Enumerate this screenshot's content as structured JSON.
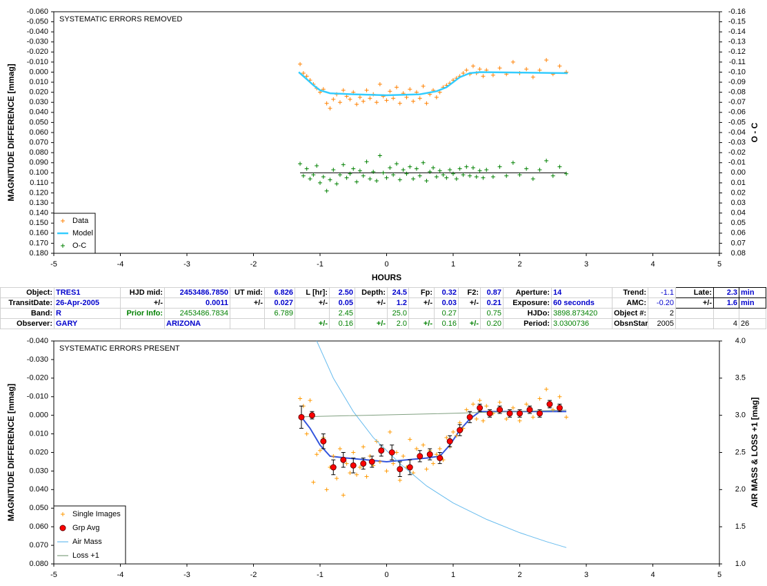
{
  "chart_data": [
    {
      "type": "scatter",
      "annotation": "SYSTEMATIC ERRORS REMOVED",
      "xlabel": "HOURS",
      "ylabel": "MAGNITUDE DIFFERENCE [mmag]",
      "y2label": "O - C",
      "xlim": [
        -5,
        5
      ],
      "xticks": [
        -5,
        -4,
        -3,
        -2,
        -1,
        0,
        1,
        2,
        3,
        4,
        5
      ],
      "ylim": [
        -0.06,
        0.18
      ],
      "inverted_y": true,
      "yticks": [
        {
          "value": -0.06,
          "label": "-0.060"
        },
        {
          "value": -0.05,
          "label": "-0.050"
        },
        {
          "value": -0.04,
          "label": "-0.040"
        },
        {
          "value": -0.03,
          "label": "-0.030"
        },
        {
          "value": -0.02,
          "label": "-0.020"
        },
        {
          "value": -0.01,
          "label": "-0.010"
        },
        {
          "value": 0,
          "label": "0.000"
        },
        {
          "value": 0.01,
          "label": "0.010"
        },
        {
          "value": 0.02,
          "label": "0.020"
        },
        {
          "value": 0.03,
          "label": "0.030"
        },
        {
          "value": 0.04,
          "label": "0.040"
        },
        {
          "value": 0.05,
          "label": "0.050"
        },
        {
          "value": 0.06,
          "label": "0.060"
        },
        {
          "value": 0.07,
          "label": "0.070"
        },
        {
          "value": 0.08,
          "label": "0.080"
        },
        {
          "value": 0.09,
          "label": "0.090"
        },
        {
          "value": 0.1,
          "label": "0.100"
        },
        {
          "value": 0.11,
          "label": "0.110"
        },
        {
          "value": 0.12,
          "label": "0.120"
        },
        {
          "value": 0.13,
          "label": "0.130"
        },
        {
          "value": 0.14,
          "label": "0.140"
        },
        {
          "value": 0.15,
          "label": "0.150"
        },
        {
          "value": 0.16,
          "label": "0.160"
        },
        {
          "value": 0.17,
          "label": "0.170"
        },
        {
          "value": 0.18,
          "label": "0.180"
        }
      ],
      "y2lim": [
        -0.16,
        0.08
      ],
      "inverted_y2": true,
      "y2ticks": [
        {
          "value": -0.16,
          "label": "-0.16"
        },
        {
          "value": -0.15,
          "label": "-0.15"
        },
        {
          "value": -0.14,
          "label": "-0.14"
        },
        {
          "value": -0.13,
          "label": "-0.13"
        },
        {
          "value": -0.12,
          "label": "-0.12"
        },
        {
          "value": -0.11,
          "label": "-0.11"
        },
        {
          "value": -0.1,
          "label": "-0.10"
        },
        {
          "value": -0.09,
          "label": "-0.09"
        },
        {
          "value": -0.08,
          "label": "-0.08"
        },
        {
          "value": -0.07,
          "label": "-0.07"
        },
        {
          "value": -0.06,
          "label": "-0.06"
        },
        {
          "value": -0.05,
          "label": "-0.05"
        },
        {
          "value": -0.04,
          "label": "-0.04"
        },
        {
          "value": -0.03,
          "label": "-0.03"
        },
        {
          "value": -0.02,
          "label": "-0.02"
        },
        {
          "value": -0.01,
          "label": "-0.01"
        },
        {
          "value": 0,
          "label": "0.00"
        },
        {
          "value": 0.01,
          "label": "0.01"
        },
        {
          "value": 0.02,
          "label": "0.02"
        },
        {
          "value": 0.03,
          "label": "0.03"
        },
        {
          "value": 0.04,
          "label": "0.04"
        },
        {
          "value": 0.05,
          "label": "0.05"
        },
        {
          "value": 0.06,
          "label": "0.06"
        },
        {
          "value": 0.07,
          "label": "0.07"
        },
        {
          "value": 0.08,
          "label": "0.08"
        }
      ],
      "legend": "lower left",
      "zero_line": "y2",
      "series": [
        {
          "name": "Data",
          "color": "#ff8000",
          "style": "plus",
          "x": [
            -1.3,
            -1.25,
            -1.2,
            -1.15,
            -1.1,
            -1.05,
            -1.0,
            -0.95,
            -0.9,
            -0.85,
            -0.8,
            -0.75,
            -0.7,
            -0.65,
            -0.6,
            -0.55,
            -0.5,
            -0.45,
            -0.4,
            -0.35,
            -0.3,
            -0.25,
            -0.2,
            -0.15,
            -0.1,
            -0.05,
            0,
            0.05,
            0.1,
            0.15,
            0.2,
            0.25,
            0.3,
            0.35,
            0.4,
            0.45,
            0.5,
            0.55,
            0.6,
            0.65,
            0.7,
            0.75,
            0.8,
            0.85,
            0.9,
            0.95,
            1.0,
            1.05,
            1.1,
            1.15,
            1.2,
            1.25,
            1.3,
            1.35,
            1.4,
            1.45,
            1.5,
            1.6,
            1.7,
            1.8,
            1.9,
            2.0,
            2.1,
            2.2,
            2.3,
            2.4,
            2.5,
            2.6,
            2.7
          ],
          "values": [
            -0.008,
            0.001,
            0.004,
            0.008,
            0.012,
            0.016,
            0.02,
            0.017,
            0.031,
            0.036,
            0.027,
            0.022,
            0.03,
            0.018,
            0.024,
            0.027,
            0.02,
            0.032,
            0.025,
            0.029,
            0.018,
            0.026,
            0.022,
            0.03,
            0.012,
            0.024,
            0.028,
            0.019,
            0.026,
            0.015,
            0.031,
            0.021,
            0.025,
            0.017,
            0.029,
            0.02,
            0.026,
            0.014,
            0.031,
            0.022,
            0.018,
            0.025,
            0.02,
            0.015,
            0.013,
            0.011,
            0.008,
            0.006,
            0.004,
            0.001,
            -0.002,
            0.002,
            -0.006,
            0.001,
            -0.003,
            0.004,
            -0.002,
            0.003,
            -0.004,
            0.002,
            -0.01,
            0.001,
            -0.003,
            0.005,
            -0.002,
            -0.012,
            0.002,
            -0.006,
            0.0
          ]
        },
        {
          "name": "Model",
          "color": "#33ccff",
          "style": "line",
          "x": [
            -1.32,
            -1.2,
            -1.1,
            -1.0,
            -0.85,
            -0.5,
            0,
            0.5,
            0.75,
            0.9,
            1.0,
            1.1,
            1.25,
            1.4,
            2.72
          ],
          "values": [
            0.0,
            0.007,
            0.013,
            0.018,
            0.021,
            0.022,
            0.023,
            0.022,
            0.019,
            0.015,
            0.01,
            0.005,
            0.001,
            0.0,
            0.001
          ]
        },
        {
          "name": "O-C",
          "color": "#008000",
          "style": "plus",
          "axis": "y2",
          "x": [
            -1.3,
            -1.25,
            -1.2,
            -1.15,
            -1.1,
            -1.05,
            -1.0,
            -0.95,
            -0.9,
            -0.85,
            -0.8,
            -0.75,
            -0.7,
            -0.65,
            -0.6,
            -0.55,
            -0.5,
            -0.45,
            -0.4,
            -0.35,
            -0.3,
            -0.25,
            -0.2,
            -0.15,
            -0.1,
            -0.05,
            0,
            0.05,
            0.1,
            0.15,
            0.2,
            0.25,
            0.3,
            0.35,
            0.4,
            0.45,
            0.5,
            0.55,
            0.6,
            0.65,
            0.7,
            0.75,
            0.8,
            0.85,
            0.9,
            0.95,
            1.0,
            1.05,
            1.1,
            1.15,
            1.2,
            1.25,
            1.3,
            1.35,
            1.4,
            1.45,
            1.5,
            1.6,
            1.7,
            1.8,
            1.9,
            2.0,
            2.1,
            2.2,
            2.3,
            2.4,
            2.5,
            2.6,
            2.7
          ],
          "values": [
            -0.009,
            0.003,
            -0.004,
            0.006,
            0.002,
            -0.007,
            0.01,
            0.004,
            0.018,
            0.007,
            -0.003,
            0.011,
            0.002,
            -0.008,
            0.005,
            0.001,
            -0.004,
            0.009,
            -0.002,
            0.003,
            -0.011,
            0.006,
            -0.001,
            0.008,
            -0.017,
            0.0,
            0.005,
            -0.005,
            0.002,
            -0.009,
            0.007,
            -0.003,
            0.001,
            -0.006,
            0.006,
            -0.004,
            0.003,
            -0.01,
            0.008,
            -0.001,
            -0.005,
            0.004,
            -0.002,
            0.002,
            0.005,
            -0.003,
            0.001,
            0.006,
            -0.004,
            0.002,
            -0.006,
            0.003,
            -0.005,
            0.004,
            -0.002,
            0.005,
            -0.003,
            0.004,
            -0.006,
            0.003,
            -0.01,
            0.002,
            -0.004,
            0.006,
            -0.003,
            -0.012,
            0.003,
            -0.006,
            0.001
          ]
        }
      ]
    },
    {
      "type": "scatter",
      "annotation": "SYSTEMATIC ERRORS PRESENT",
      "ylabel": "MAGNITUDE DIFFERENCE [mmag]",
      "y2label": "AIR MASS & LOSS +1 [mag]",
      "xlim": [
        -5,
        5
      ],
      "xticks": [
        -5,
        -4,
        -3,
        -2,
        -1,
        0,
        1,
        2,
        3,
        4,
        5
      ],
      "ylim": [
        -0.04,
        0.08
      ],
      "inverted_y": true,
      "yticks": [
        {
          "value": -0.04,
          "label": "-0.040"
        },
        {
          "value": -0.03,
          "label": "-0.030"
        },
        {
          "value": -0.02,
          "label": "-0.020"
        },
        {
          "value": -0.01,
          "label": "-0.010"
        },
        {
          "value": 0,
          "label": "0.000"
        },
        {
          "value": 0.01,
          "label": "0.010"
        },
        {
          "value": 0.02,
          "label": "0.020"
        },
        {
          "value": 0.03,
          "label": "0.030"
        },
        {
          "value": 0.04,
          "label": "0.040"
        },
        {
          "value": 0.05,
          "label": "0.050"
        },
        {
          "value": 0.06,
          "label": "0.060"
        },
        {
          "value": 0.07,
          "label": "0.070"
        },
        {
          "value": 0.08,
          "label": "0.080"
        }
      ],
      "y2lim": [
        1.0,
        4.0
      ],
      "y2ticks": [
        {
          "value": 1,
          "label": "1.0"
        },
        {
          "value": 1.5,
          "label": "1.5"
        },
        {
          "value": 2,
          "label": "2.0"
        },
        {
          "value": 2.5,
          "label": "2.5"
        },
        {
          "value": 3,
          "label": "3.0"
        },
        {
          "value": 3.5,
          "label": "3.5"
        },
        {
          "value": 4,
          "label": "4.0"
        }
      ],
      "legend": "lower left",
      "fit": {
        "color": "#3355dd",
        "x": [
          -1.3,
          -1.15,
          -1.0,
          -0.85,
          -0.6,
          -0.3,
          0,
          0.3,
          0.6,
          0.8,
          0.95,
          1.1,
          1.25,
          1.4,
          2.7
        ],
        "values": [
          0.0,
          0.007,
          0.016,
          0.022,
          0.023,
          0.024,
          0.025,
          0.024,
          0.023,
          0.022,
          0.016,
          0.008,
          0.002,
          -0.002,
          -0.002
        ]
      },
      "series": [
        {
          "name": "Single Images",
          "color": "#ff9900",
          "style": "plus",
          "x": [
            -1.3,
            -1.25,
            -1.2,
            -1.15,
            -1.1,
            -1.05,
            -1.0,
            -0.95,
            -0.9,
            -0.85,
            -0.8,
            -0.75,
            -0.7,
            -0.65,
            -0.6,
            -0.55,
            -0.5,
            -0.45,
            -0.4,
            -0.35,
            -0.3,
            -0.25,
            -0.2,
            -0.15,
            -0.1,
            -0.05,
            0,
            0.05,
            0.1,
            0.15,
            0.2,
            0.25,
            0.3,
            0.35,
            0.4,
            0.45,
            0.5,
            0.55,
            0.6,
            0.65,
            0.7,
            0.75,
            0.8,
            0.85,
            0.9,
            0.95,
            1.0,
            1.05,
            1.1,
            1.15,
            1.2,
            1.25,
            1.3,
            1.35,
            1.4,
            1.45,
            1.5,
            1.6,
            1.7,
            1.8,
            1.9,
            2.0,
            2.1,
            2.2,
            2.3,
            2.4,
            2.5,
            2.6,
            2.7
          ],
          "values": [
            -0.009,
            -0.005,
            0.01,
            -0.008,
            0.036,
            0.021,
            0.019,
            0.012,
            0.04,
            0.028,
            0.022,
            0.034,
            0.018,
            0.043,
            0.026,
            0.031,
            0.02,
            0.032,
            0.028,
            0.017,
            0.033,
            0.022,
            0.027,
            0.014,
            0.025,
            0.018,
            0.03,
            0.009,
            0.026,
            0.02,
            0.035,
            0.022,
            0.028,
            0.013,
            0.031,
            0.018,
            0.023,
            0.016,
            0.029,
            0.019,
            0.026,
            0.021,
            0.018,
            0.024,
            0.012,
            0.017,
            0.009,
            0.011,
            0.004,
            0.007,
            -0.003,
            0.001,
            -0.006,
            0.002,
            -0.008,
            0.003,
            -0.005,
            -0.001,
            -0.007,
            0.002,
            -0.004,
            0.003,
            -0.006,
            0.001,
            -0.009,
            -0.014,
            -0.003,
            -0.01,
            0.001
          ]
        },
        {
          "name": "Grp Avg",
          "color": "#ff0000",
          "style": "circle",
          "x": [
            -1.28,
            -1.12,
            -0.95,
            -0.8,
            -0.65,
            -0.5,
            -0.35,
            -0.22,
            -0.08,
            0.08,
            0.2,
            0.35,
            0.5,
            0.65,
            0.8,
            0.95,
            1.1,
            1.25,
            1.4,
            1.55,
            1.7,
            1.85,
            2.0,
            2.15,
            2.3,
            2.45,
            2.6
          ],
          "values": [
            0.001,
            0.0,
            0.014,
            0.028,
            0.024,
            0.027,
            0.026,
            0.025,
            0.019,
            0.02,
            0.029,
            0.028,
            0.022,
            0.021,
            0.023,
            0.014,
            0.008,
            0.001,
            -0.004,
            -0.001,
            -0.003,
            -0.001,
            -0.001,
            -0.003,
            -0.001,
            -0.006,
            -0.004
          ],
          "errors": [
            0.006,
            0.002,
            0.004,
            0.004,
            0.004,
            0.004,
            0.003,
            0.003,
            0.003,
            0.004,
            0.004,
            0.004,
            0.003,
            0.003,
            0.003,
            0.003,
            0.003,
            0.003,
            0.002,
            0.002,
            0.002,
            0.002,
            0.002,
            0.002,
            0.002,
            0.002,
            0.002
          ]
        },
        {
          "name": "Air Mass",
          "color": "#66bbee",
          "style": "line",
          "axis": "y2",
          "x": [
            -1.05,
            -0.8,
            -0.5,
            -0.2,
            0.2,
            0.6,
            1.0,
            1.5,
            2.0,
            2.4,
            2.7
          ],
          "values": [
            4.0,
            3.5,
            3.05,
            2.7,
            2.35,
            2.05,
            1.82,
            1.6,
            1.42,
            1.3,
            1.22
          ]
        },
        {
          "name": "Loss +1",
          "color": "#7f9f7f",
          "style": "line",
          "axis": "y2",
          "x": [
            -1.3,
            0.7,
            2.7
          ],
          "values": [
            2.98,
            3.02,
            3.07
          ]
        }
      ]
    }
  ],
  "table": {
    "rows": [
      [
        "Object:",
        "TRES1",
        "HJD mid:",
        "2453486.7850",
        "UT mid:",
        "6.826",
        "L [hr]:",
        "2.50",
        "Depth:",
        "24.5",
        "Fp:",
        "0.32",
        "F2:",
        "0.87",
        "Aperture:",
        "14",
        "Trend:",
        "-1.1",
        "Late:",
        "2.3",
        "min"
      ],
      [
        "TransitDate:",
        "26-Apr-2005",
        "+/-",
        "0.0011",
        "+/-",
        "0.027",
        "+/-",
        "0.05",
        "+/-",
        "1.2",
        "+/-",
        "0.03",
        "+/-",
        "0.21",
        "Exposure:",
        "60 seconds",
        "AMC:",
        "-0.20",
        "+/-",
        "1.6",
        "min"
      ],
      [
        "Band:",
        "R",
        "Prior Info:",
        "2453486.7834",
        "6.789",
        "2.45",
        "25.0",
        "0.27",
        "0.75",
        "HJDo:",
        "3898.873420",
        "Object #:",
        "2"
      ],
      [
        "Observer:",
        "GARY",
        "ARIZONA",
        "+/-",
        "0.16",
        "+/-",
        "2.0",
        "+/-",
        "0.16",
        "+/-",
        "0.20",
        "Period:",
        "3.0300736",
        "ObsnStartDate:",
        "2005",
        "4",
        "26"
      ]
    ]
  }
}
